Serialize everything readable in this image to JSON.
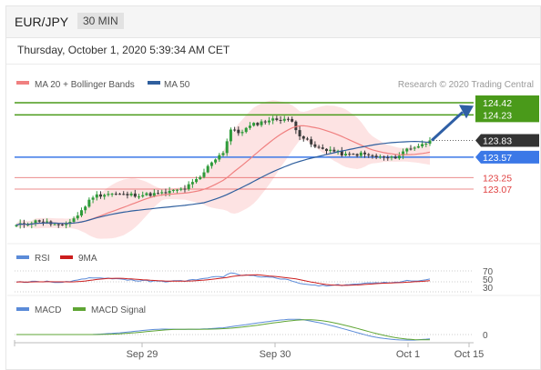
{
  "header": {
    "pair": "EUR/JPY",
    "timeframe": "30 MIN",
    "datetime": "Thursday, October 1, 2020 5:39:34 AM CET"
  },
  "legend": {
    "ma20": "MA 20 + Bollinger Bands",
    "ma50": "MA 50",
    "credit": "Research © 2020 Trading Central",
    "rsi": "RSI",
    "rsi_ma": "9MA",
    "macd": "MACD",
    "macd_signal": "MACD Signal"
  },
  "colors": {
    "candle_up": "#2e9b3a",
    "candle_down": "#3a3a3a",
    "ma20": "#f08080",
    "bands": "#fde3e3",
    "ma50": "#2f5f9e",
    "target": "#4a9a1a",
    "pivot": "#3b78e7",
    "support": "#e04040",
    "current": "#333333",
    "arrow": "#2f5fa5",
    "rsi": "#5b8bd8",
    "rsi_ma": "#cc1e1e",
    "macd": "#5b8bd8",
    "macd_signal": "#5fa534"
  },
  "chart_data": {
    "type": "candlestick",
    "price_levels": [
      {
        "value": 124.42,
        "label": "124.42",
        "kind": "target"
      },
      {
        "value": 124.23,
        "label": "124.23",
        "kind": "target"
      },
      {
        "value": 123.83,
        "label": "123.83",
        "kind": "current"
      },
      {
        "value": 123.57,
        "label": "123.57",
        "kind": "pivot"
      },
      {
        "value": 123.25,
        "label": "123.25",
        "kind": "support"
      },
      {
        "value": 123.07,
        "label": "123.07",
        "kind": "support"
      }
    ],
    "x_ticks": [
      "Sep 29",
      "Sep 30",
      "Oct 1",
      "Oct 15"
    ],
    "rsi_levels": [
      "70",
      "50",
      "30"
    ],
    "macd_levels": [
      "0"
    ],
    "price_path": [
      [
        0,
        122.5
      ],
      [
        6,
        122.58
      ],
      [
        12,
        122.48
      ],
      [
        16,
        122.66
      ],
      [
        20,
        122.96
      ],
      [
        24,
        123.0
      ],
      [
        28,
        122.98
      ],
      [
        33,
        122.98
      ],
      [
        38,
        123.0
      ],
      [
        44,
        123.08
      ],
      [
        48,
        123.25
      ],
      [
        51,
        123.5
      ],
      [
        54,
        123.65
      ],
      [
        56,
        124.0
      ],
      [
        58,
        123.95
      ],
      [
        62,
        124.08
      ],
      [
        66,
        124.15
      ],
      [
        70,
        124.17
      ],
      [
        72,
        124.12
      ],
      [
        74,
        123.92
      ],
      [
        78,
        123.72
      ],
      [
        82,
        123.68
      ],
      [
        86,
        123.6
      ],
      [
        90,
        123.62
      ],
      [
        94,
        123.57
      ],
      [
        98,
        123.55
      ],
      [
        100,
        123.6
      ],
      [
        102,
        123.7
      ],
      [
        106,
        123.76
      ],
      [
        108,
        123.83
      ]
    ]
  }
}
